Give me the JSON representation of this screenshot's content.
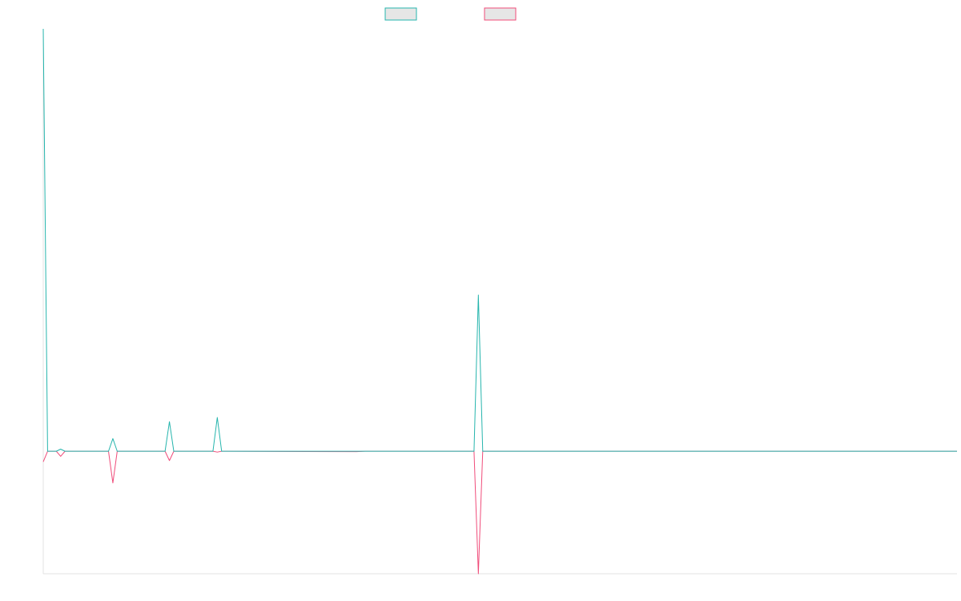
{
  "colors": {
    "series_a": "#26b5ad",
    "series_b": "#f04c7a",
    "legend_fill": "#e6e6e6",
    "axis": "#e3e3e3"
  },
  "legend": {
    "placement": "top-center",
    "show_text": false
  },
  "chart_data": {
    "type": "line",
    "grid": false,
    "xlim": [
      0,
      210
    ],
    "ylim": [
      -29,
      100
    ],
    "x": [
      0,
      1,
      3,
      4,
      5,
      15,
      16,
      17,
      28,
      29,
      30,
      39,
      40,
      41,
      42,
      72,
      74,
      98,
      99,
      100,
      101,
      210
    ],
    "series": [
      {
        "values": [
          100,
          0,
          0,
          0.5,
          0,
          0,
          3,
          0,
          0,
          7,
          0,
          0,
          8,
          0,
          0,
          0,
          0,
          0,
          0,
          37,
          0,
          0
        ]
      },
      {
        "values": [
          -2.5,
          0,
          0,
          -1.2,
          0,
          0,
          -7.5,
          0,
          0,
          -2.2,
          0,
          0,
          -0.2,
          0,
          0,
          -0.1,
          0,
          0,
          0,
          -29,
          0,
          0
        ]
      }
    ]
  }
}
